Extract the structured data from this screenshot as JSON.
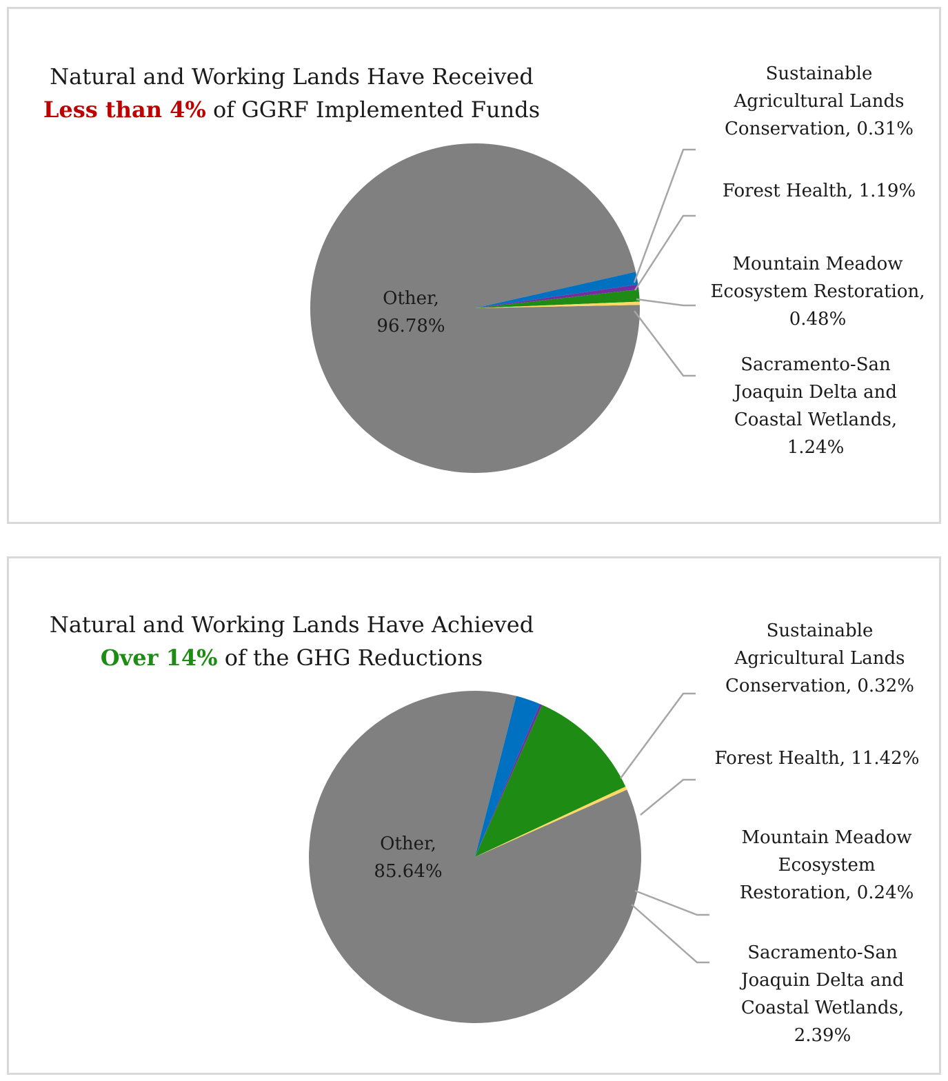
{
  "chart_data": [
    {
      "type": "pie",
      "title_line1": "Natural and Working Lands Have Received",
      "title_emphasis": "Less than 4%",
      "title_rest": " of GGRF Implemented Funds",
      "title_emphasis_color": "#c00000",
      "slices": [
        {
          "name": "Other",
          "value": 96.78,
          "label_lines": [
            "Other,",
            "96.78%"
          ],
          "color": "#808080"
        },
        {
          "name": "Sacramento-San Joaquin Delta and Coastal Wetlands",
          "value": 1.24,
          "label_lines": [
            "Sacramento-San",
            "Joaquin Delta and",
            "Coastal Wetlands,",
            "1.24%"
          ],
          "color": "#0070c0"
        },
        {
          "name": "Mountain Meadow Ecosystem Restoration",
          "value": 0.48,
          "label_lines": [
            "Mountain Meadow",
            "Ecosystem Restoration,",
            "0.48%"
          ],
          "color": "#7030a0"
        },
        {
          "name": "Forest Health",
          "value": 1.19,
          "label_lines": [
            "Forest Health, 1.19%"
          ],
          "color": "#1e8c14"
        },
        {
          "name": "Sustainable Agricultural Lands Conservation",
          "value": 0.31,
          "label_lines": [
            "Sustainable",
            "Agricultural Lands",
            "Conservation, 0.31%"
          ],
          "color": "#ffd966"
        }
      ]
    },
    {
      "type": "pie",
      "title_line1": "Natural and Working Lands Have Achieved",
      "title_emphasis": "Over 14%",
      "title_rest": " of the GHG Reductions",
      "title_emphasis_color": "#1e8c14",
      "slices": [
        {
          "name": "Other",
          "value": 85.64,
          "label_lines": [
            "Other,",
            "85.64%"
          ],
          "color": "#808080"
        },
        {
          "name": "Sacramento-San Joaquin Delta and Coastal Wetlands",
          "value": 2.39,
          "label_lines": [
            "Sacramento-San",
            "Joaquin Delta and",
            "Coastal Wetlands,",
            "2.39%"
          ],
          "color": "#0070c0"
        },
        {
          "name": "Mountain Meadow Ecosystem Restoration",
          "value": 0.24,
          "label_lines": [
            "Mountain Meadow",
            "Ecosystem",
            "Restoration, 0.24%"
          ],
          "color": "#7030a0"
        },
        {
          "name": "Forest Health",
          "value": 11.42,
          "label_lines": [
            "Forest Health, 11.42%"
          ],
          "color": "#1e8c14"
        },
        {
          "name": "Sustainable Agricultural Lands Conservation",
          "value": 0.32,
          "label_lines": [
            "Sustainable",
            "Agricultural Lands",
            "Conservation, 0.32%"
          ],
          "color": "#ffd966"
        }
      ]
    }
  ]
}
